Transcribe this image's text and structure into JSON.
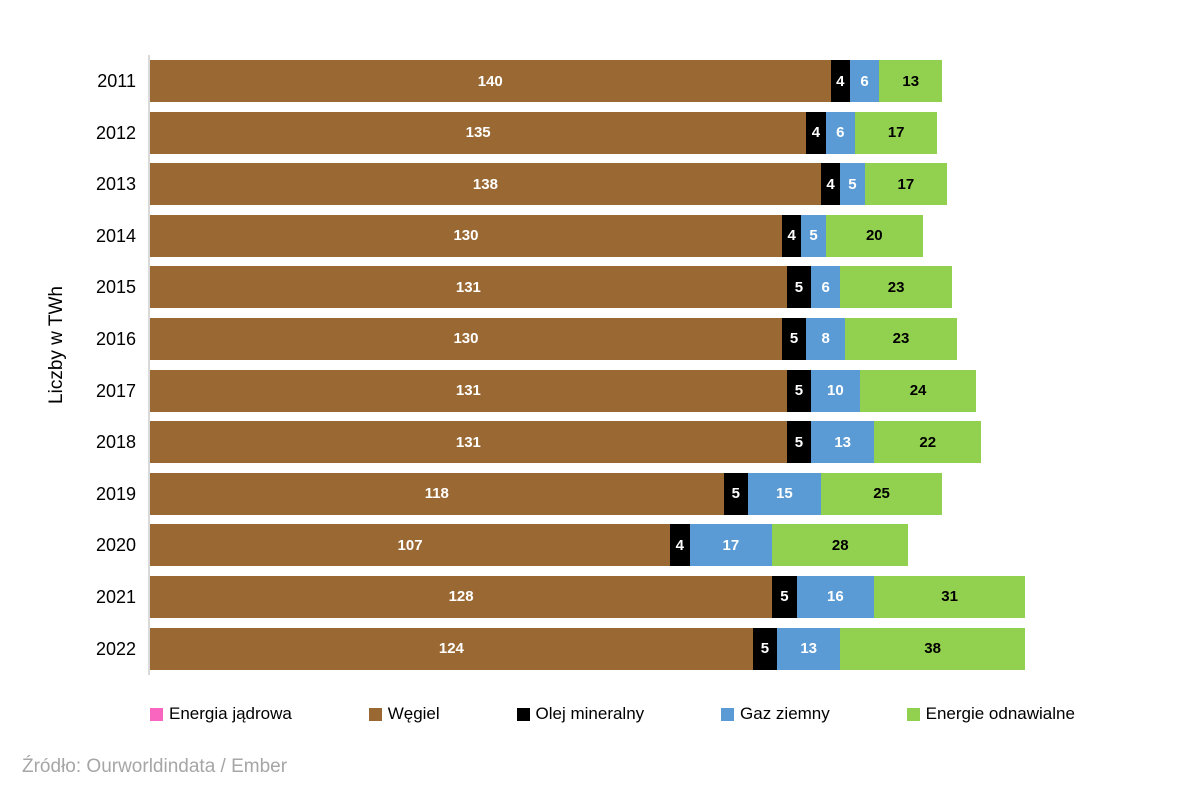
{
  "chart_data": {
    "type": "bar",
    "orientation": "horizontal",
    "title": "",
    "ylabel": "Liczby w TWh",
    "xlabel": "",
    "unit": "TWh",
    "categories": [
      "2011",
      "2012",
      "2013",
      "2014",
      "2015",
      "2016",
      "2017",
      "2018",
      "2019",
      "2020",
      "2021",
      "2022"
    ],
    "series": [
      {
        "key": "energia-jadrowa",
        "name": "Energia jądrowa",
        "color": "#F966BF",
        "label_color": "#FFFFFF",
        "values": [
          0,
          0,
          0,
          0,
          0,
          0,
          0,
          0,
          0,
          0,
          0,
          0
        ]
      },
      {
        "key": "wegiel",
        "name": "Węgiel",
        "color": "#9A6832",
        "label_color": "#FFFFFF",
        "values": [
          140,
          135,
          138,
          130,
          131,
          130,
          131,
          131,
          118,
          107,
          128,
          124
        ]
      },
      {
        "key": "olej-mineralny",
        "name": "Olej mineralny",
        "color": "#000000",
        "label_color": "#FFFFFF",
        "values": [
          4,
          4,
          4,
          4,
          5,
          5,
          5,
          5,
          5,
          4,
          5,
          5
        ]
      },
      {
        "key": "gaz-ziemny",
        "name": "Gaz ziemny",
        "color": "#5B9BD5",
        "label_color": "#FFFFFF",
        "values": [
          6,
          6,
          5,
          5,
          6,
          8,
          10,
          13,
          15,
          17,
          16,
          13
        ]
      },
      {
        "key": "energie-odnawialne",
        "name": "Energie odnawialne",
        "color": "#92D050",
        "label_color": "#000000",
        "values": [
          13,
          17,
          17,
          20,
          23,
          23,
          24,
          22,
          25,
          28,
          31,
          38
        ]
      }
    ],
    "legend_position": "bottom",
    "grid": false,
    "value_labels": true,
    "axis_line_color": "#D9D9D9",
    "x_max": 180,
    "source": "Źródło: Ourworldindata / Ember",
    "source_color": "#A6A6A6"
  }
}
